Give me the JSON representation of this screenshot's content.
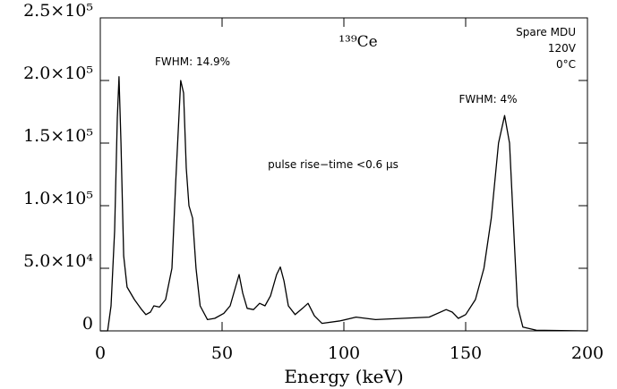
{
  "chart_data": {
    "type": "line",
    "xlabel": "Energy (keV)",
    "annotations": [
      "FWHM: 14.9%",
      "FWHM: 4%",
      "¹³⁹Ce",
      "Spare MDU",
      "120V",
      "0°C",
      "pulse rise−time <0.6 μs"
    ],
    "x": [
      0,
      3,
      4.4,
      5.9,
      7,
      7.7,
      8.5,
      9.6,
      11,
      14,
      17,
      18.7,
      20.6,
      22,
      24.3,
      26.8,
      29.4,
      31,
      33,
      34.2,
      35.3,
      36.4,
      37.9,
      39.3,
      41,
      44,
      47,
      50.7,
      53.3,
      55.5,
      57,
      58.5,
      60.3,
      62.9,
      65.4,
      67.6,
      69.9,
      72.4,
      73.9,
      75.4,
      77.2,
      80,
      83,
      85.3,
      87.9,
      91,
      98.5,
      105,
      113,
      124,
      135,
      142,
      144.5,
      147,
      150,
      154,
      157.5,
      160.5,
      163.5,
      166,
      168,
      170,
      171.3,
      173.5,
      179,
      200
    ],
    "series": [
      {
        "color": "#000000",
        "values": [
          0,
          0,
          20000,
          80000,
          170000,
          203000,
          150000,
          60000,
          35000,
          25000,
          17000,
          13000,
          15000,
          20000,
          19000,
          25000,
          50000,
          120000,
          200000,
          190000,
          130000,
          100000,
          90000,
          50000,
          20000,
          9000,
          10000,
          14000,
          20000,
          35000,
          45000,
          30000,
          18000,
          17000,
          22000,
          20000,
          28000,
          45000,
          51000,
          40000,
          20000,
          13000,
          18000,
          22000,
          12000,
          6000,
          8000,
          11000,
          9000,
          10000,
          11000,
          17000,
          15000,
          10000,
          13000,
          25000,
          50000,
          90000,
          150000,
          172000,
          150000,
          70000,
          20000,
          3000,
          500,
          0
        ]
      }
    ],
    "xlim": [
      0,
      200
    ],
    "xticks": [
      0,
      50,
      100,
      150,
      200
    ],
    "ylim": [
      0,
      250000
    ],
    "yticks": [
      0,
      {
        "value": 50000,
        "label": "5.0×10⁴"
      },
      {
        "value": 100000,
        "label": "1.0×10⁵"
      },
      {
        "value": 150000,
        "label": "1.5×10⁵"
      },
      {
        "value": 200000,
        "label": "2.0×10⁵"
      },
      {
        "value": 250000,
        "label": "2.5×10⁵"
      }
    ]
  }
}
